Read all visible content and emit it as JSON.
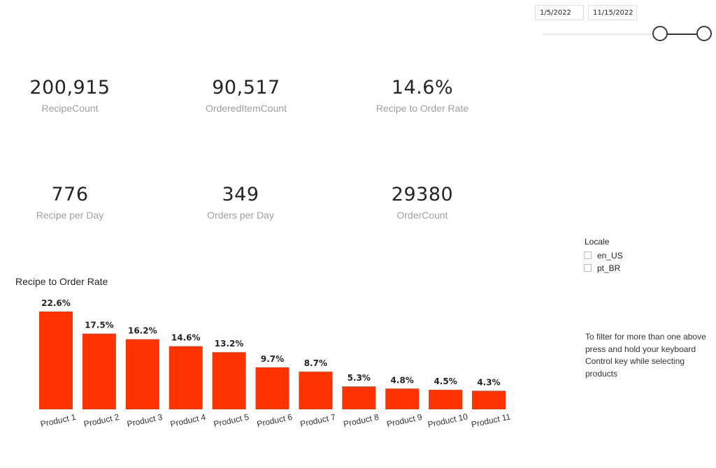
{
  "date_range": {
    "start": "1/5/2022",
    "end": "11/15/2022"
  },
  "kpis": [
    {
      "value": "200,915",
      "label": "RecipeCount"
    },
    {
      "value": "90,517",
      "label": "OrderedItemCount"
    },
    {
      "value": "14.6%",
      "label": "Recipe to Order Rate"
    },
    {
      "value": "776",
      "label": "Recipe per Day"
    },
    {
      "value": "349",
      "label": "Orders per Day"
    },
    {
      "value": "29380",
      "label": "OrderCount"
    }
  ],
  "locale_slicer": {
    "title": "Locale",
    "options": [
      "en_US",
      "pt_BR"
    ]
  },
  "filter_note": "To filter for more than one above press and hold your keyboard Control key while selecting products",
  "chart_data": {
    "type": "bar",
    "title": "Recipe to Order Rate",
    "categories": [
      "Product 1",
      "Product 2",
      "Product 3",
      "Product 4",
      "Product 5",
      "Product 6",
      "Product 7",
      "Product 8",
      "Product 9",
      "Product 10",
      "Product 11"
    ],
    "values": [
      22.6,
      17.5,
      16.2,
      14.6,
      13.2,
      9.7,
      8.7,
      5.3,
      4.8,
      4.5,
      4.3
    ],
    "data_labels": [
      "22.6%",
      "17.5%",
      "16.2%",
      "14.6%",
      "13.2%",
      "9.7%",
      "8.7%",
      "5.3%",
      "4.8%",
      "4.5%",
      "4.3%"
    ],
    "bar_color": "#ff3300",
    "ylim": [
      0,
      22.6
    ],
    "grid": false,
    "legend": "none"
  }
}
